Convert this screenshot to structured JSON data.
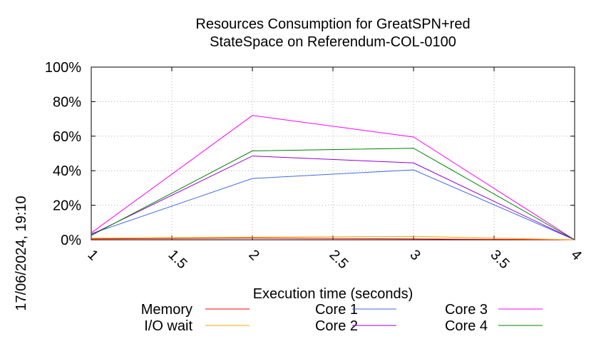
{
  "chart_data": {
    "type": "line",
    "title_lines": [
      "Resources Consumption for GreatSPN+red",
      "StateSpace on Referendum-COL-0100"
    ],
    "xlabel": "Execution time (seconds)",
    "ylabel": "",
    "side_label": "17/06/2024, 19:10",
    "xlim": [
      1,
      4
    ],
    "ylim": [
      0,
      100
    ],
    "x_ticks": [
      1,
      1.5,
      2,
      2.5,
      3,
      3.5,
      4
    ],
    "x_tick_labels": [
      "1",
      "1.5",
      "2",
      "2.5",
      "3",
      "3.5",
      "4"
    ],
    "y_ticks": [
      0,
      20,
      40,
      60,
      80,
      100
    ],
    "y_tick_labels": [
      "0%",
      "20%",
      "40%",
      "60%",
      "80%",
      "100%"
    ],
    "grid": true,
    "legend_position": "bottom",
    "series": [
      {
        "name": "Memory",
        "color": "#ff0000",
        "x": [
          1,
          2,
          3,
          4
        ],
        "y": [
          0.5,
          1.0,
          0.5,
          0
        ]
      },
      {
        "name": "I/O wait",
        "color": "#ffa500",
        "x": [
          1,
          2,
          3,
          4
        ],
        "y": [
          1.0,
          1.5,
          2.0,
          0
        ]
      },
      {
        "name": "Core 1",
        "color": "#4169e1",
        "x": [
          1,
          2,
          3,
          4
        ],
        "y": [
          3.5,
          35.5,
          40.5,
          0
        ]
      },
      {
        "name": "Core 2",
        "color": "#9400d3",
        "x": [
          1,
          2,
          3,
          4
        ],
        "y": [
          3.0,
          48.5,
          44.5,
          0
        ]
      },
      {
        "name": "Core 3",
        "color": "#ff00ff",
        "x": [
          1,
          2,
          3,
          4
        ],
        "y": [
          4.0,
          72.0,
          59.5,
          0
        ]
      },
      {
        "name": "Core 4",
        "color": "#008000",
        "x": [
          1,
          2,
          3,
          4
        ],
        "y": [
          2.5,
          51.5,
          53.0,
          0
        ]
      }
    ]
  }
}
